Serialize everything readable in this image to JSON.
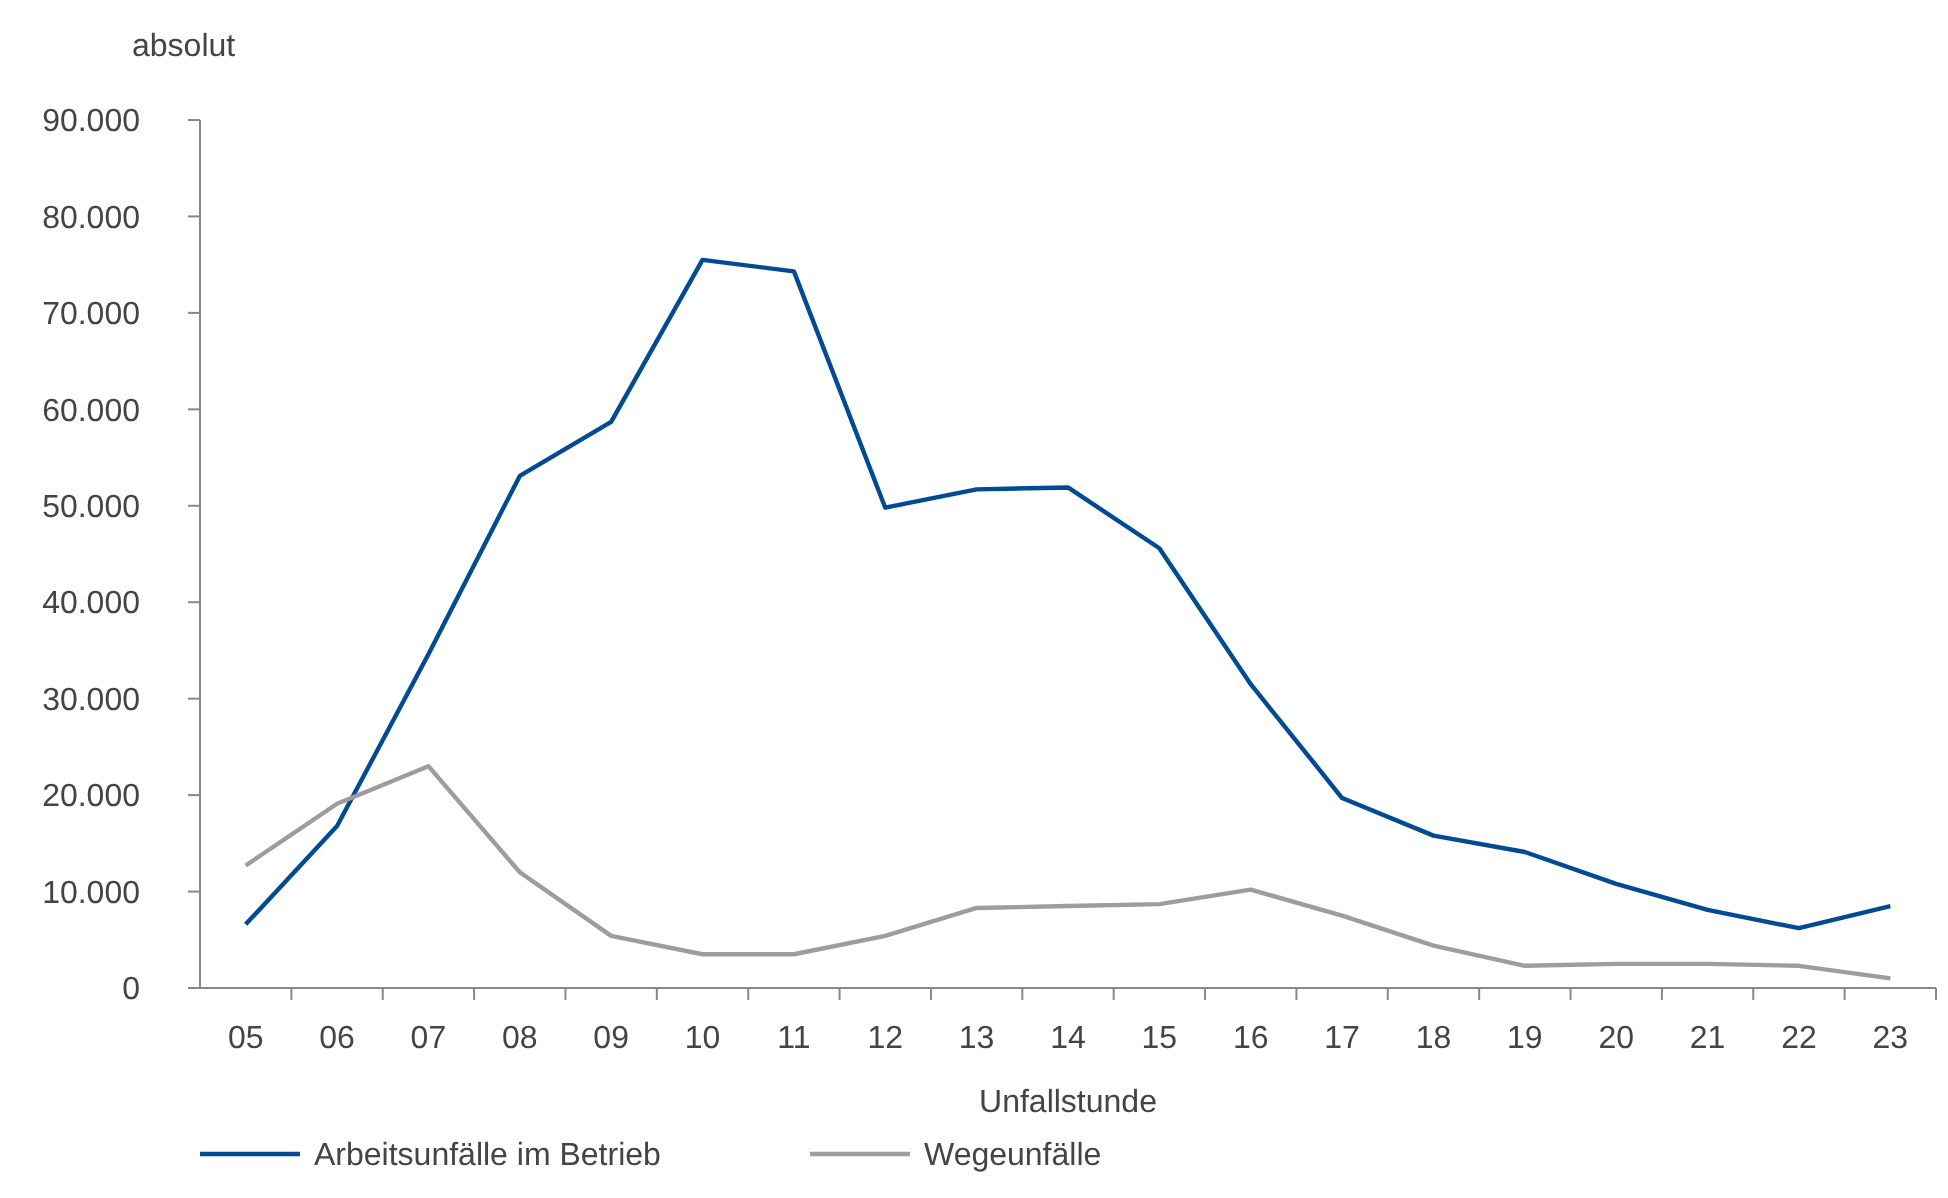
{
  "chart_data": {
    "type": "line",
    "ylabel": "absolut",
    "xlabel": "Unfallstunde",
    "categories": [
      "05",
      "06",
      "07",
      "08",
      "09",
      "10",
      "11",
      "12",
      "13",
      "14",
      "15",
      "16",
      "17",
      "18",
      "19",
      "20",
      "21",
      "22",
      "23"
    ],
    "series": [
      {
        "name": "Arbeitsunfälle im Betrieb",
        "color": "#004b93",
        "values": [
          6600,
          16800,
          34600,
          53100,
          58700,
          75500,
          74300,
          49800,
          51700,
          51900,
          45600,
          31500,
          19700,
          15800,
          14100,
          10800,
          8100,
          6200,
          8500
        ]
      },
      {
        "name": "Wegeunfälle",
        "color": "#9d9d9d",
        "values": [
          12700,
          19100,
          23000,
          12000,
          5400,
          3500,
          3500,
          5400,
          8300,
          8500,
          8700,
          10200,
          7500,
          4400,
          2300,
          2500,
          2500,
          2300,
          1000
        ]
      }
    ],
    "ylim": [
      0,
      90000
    ],
    "yticks": [
      0,
      {
        "value": 10000,
        "label": "10.000"
      },
      {
        "value": 20000,
        "label": "20.000"
      },
      {
        "value": 30000,
        "label": "30.000"
      },
      {
        "value": 40000,
        "label": "40.000"
      },
      {
        "value": 50000,
        "label": "50.000"
      },
      {
        "value": 60000,
        "label": "60.000"
      },
      {
        "value": 70000,
        "label": "70.000"
      },
      {
        "value": 80000,
        "label": "80.000"
      },
      {
        "value": 90000,
        "label": "90.000"
      }
    ],
    "grid": false,
    "legend": "bottom",
    "marker": "none",
    "line_style": "solid"
  }
}
